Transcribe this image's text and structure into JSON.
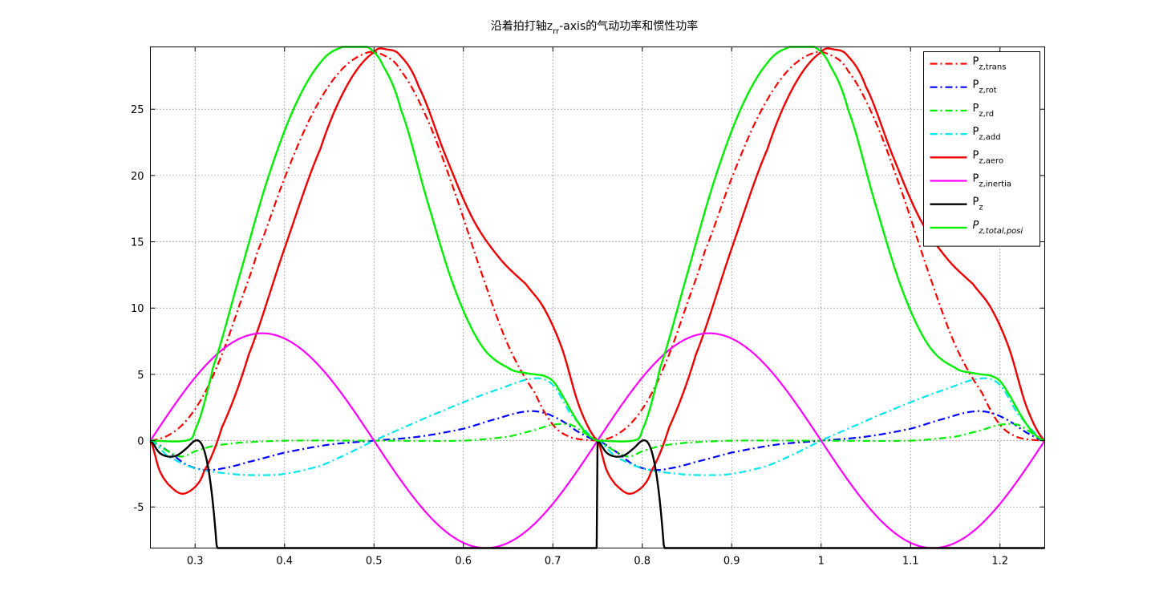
{
  "chart_data": {
    "type": "line",
    "title_main": "沿着拍打轴z",
    "title_sub": "rr",
    "title_rest": "-axis的气动功率和惯性功率",
    "xlim": [
      0.25,
      1.25
    ],
    "ylim": [
      -8.1,
      29.7
    ],
    "xticks": [
      0.3,
      0.4,
      0.5,
      0.6,
      0.7,
      0.8,
      0.9,
      1.0,
      1.1,
      1.2
    ],
    "xtick_labels": [
      "0.3",
      "0.4",
      "0.5",
      "0.6",
      "0.7",
      "0.8",
      "0.9",
      "1",
      "1.1",
      "1.2"
    ],
    "yticks": [
      -5,
      0,
      5,
      10,
      15,
      20,
      25
    ],
    "ytick_labels": [
      "-5",
      "0",
      "5",
      "10",
      "15",
      "20",
      "25"
    ],
    "grid": true,
    "legend_position": "top-right",
    "period": 0.5,
    "series": [
      {
        "name": "P",
        "sub": "z,trans",
        "italic": false,
        "color": "#ff0000",
        "dash": "9,4,2,4",
        "width": 2.2,
        "x": [
          0.25,
          0.27,
          0.29,
          0.31,
          0.33,
          0.35,
          0.37,
          0.4,
          0.43,
          0.46,
          0.49,
          0.51,
          0.53,
          0.56,
          0.59,
          0.62,
          0.65,
          0.68,
          0.7,
          0.72,
          0.75
        ],
        "values": [
          0,
          0.4,
          1.5,
          3.5,
          6.5,
          10.3,
          14.3,
          19.8,
          24.5,
          27.7,
          29.2,
          29.1,
          27.9,
          24.2,
          18.8,
          12.7,
          7.2,
          3.6,
          1.2,
          0.25,
          0
        ]
      },
      {
        "name": "P",
        "sub": "z,rot",
        "italic": false,
        "color": "#0000ff",
        "dash": "9,4,2,4",
        "width": 2.2,
        "x": [
          0.25,
          0.27,
          0.29,
          0.31,
          0.33,
          0.36,
          0.4,
          0.45,
          0.5,
          0.55,
          0.6,
          0.64,
          0.67,
          0.69,
          0.71,
          0.73,
          0.75
        ],
        "values": [
          0,
          -0.8,
          -1.8,
          -2.2,
          -2.1,
          -1.6,
          -0.9,
          -0.3,
          0,
          0.3,
          0.9,
          1.7,
          2.2,
          2.1,
          1.5,
          0.6,
          0
        ]
      },
      {
        "name": "P",
        "sub": "z,rd",
        "italic": false,
        "color": "#00ee00",
        "dash": "9,4,2,4",
        "width": 2.2,
        "x": [
          0.25,
          0.27,
          0.285,
          0.3,
          0.32,
          0.35,
          0.4,
          0.5,
          0.6,
          0.65,
          0.68,
          0.7,
          0.72,
          0.735,
          0.75
        ],
        "values": [
          0,
          -0.8,
          -1.2,
          -0.8,
          -0.4,
          -0.15,
          0,
          0,
          0,
          0.3,
          0.8,
          1.2,
          1.2,
          0.6,
          0
        ]
      },
      {
        "name": "P",
        "sub": "z,add",
        "italic": false,
        "color": "#00e5ee",
        "dash": "9,4,2,4",
        "width": 2.2,
        "x": [
          0.25,
          0.27,
          0.3,
          0.34,
          0.37,
          0.4,
          0.44,
          0.47,
          0.5,
          0.53,
          0.56,
          0.6,
          0.64,
          0.68,
          0.7,
          0.72,
          0.75
        ],
        "values": [
          0,
          -1.2,
          -2.1,
          -2.5,
          -2.6,
          -2.5,
          -1.9,
          -1.0,
          0,
          0.9,
          1.8,
          2.9,
          3.9,
          4.7,
          4.2,
          2.0,
          0
        ]
      },
      {
        "name": "P",
        "sub": "z,aero",
        "italic": false,
        "color": "#ee0000",
        "dash": "",
        "width": 2.4,
        "x": [
          0.25,
          0.26,
          0.27,
          0.285,
          0.3,
          0.31,
          0.33,
          0.36,
          0.4,
          0.44,
          0.47,
          0.5,
          0.515,
          0.53,
          0.55,
          0.58,
          0.61,
          0.64,
          0.67,
          0.69,
          0.71,
          0.73,
          0.75
        ],
        "values": [
          0,
          -2.2,
          -3.3,
          -4.0,
          -3.5,
          -2.3,
          1.0,
          6.5,
          14.5,
          22.0,
          26.8,
          29.3,
          29.5,
          29.0,
          26.7,
          21.5,
          16.8,
          13.8,
          11.8,
          10.0,
          7.0,
          2.5,
          0
        ]
      },
      {
        "name": "P",
        "sub": "z,inertia",
        "italic": false,
        "color": "#ff00ff",
        "dash": "",
        "width": 2.2,
        "func": "inertia",
        "amplitude": 8.1
      },
      {
        "name": "P",
        "sub": "z",
        "italic": false,
        "color": "#000000",
        "dash": "",
        "width": 2.4,
        "x": [
          0.25,
          0.26,
          0.27,
          0.28,
          0.29,
          0.3
        ],
        "values": [
          0,
          -0.9,
          -1.2,
          -1.1,
          -0.6,
          0
        ]
      },
      {
        "name": "P",
        "sub": "z,total,posi",
        "italic": true,
        "color": "#00ee00",
        "dash": "",
        "width": 2.4,
        "x": [
          0.25,
          0.29,
          0.3,
          0.32,
          0.35,
          0.38,
          0.41,
          0.44,
          0.465,
          0.48,
          0.495,
          0.51,
          0.53,
          0.56,
          0.59,
          0.62,
          0.65,
          0.67,
          0.69,
          0.7,
          0.71,
          0.72,
          0.73,
          0.74,
          0.75
        ],
        "values": [
          0,
          0,
          0.8,
          5.5,
          12.5,
          19.5,
          25.0,
          28.5,
          29.7,
          29.8,
          29.6,
          28.3,
          25.0,
          18.0,
          11.5,
          7.2,
          5.5,
          5.1,
          4.9,
          4.5,
          3.5,
          2.3,
          1.2,
          0.4,
          0
        ]
      }
    ]
  }
}
